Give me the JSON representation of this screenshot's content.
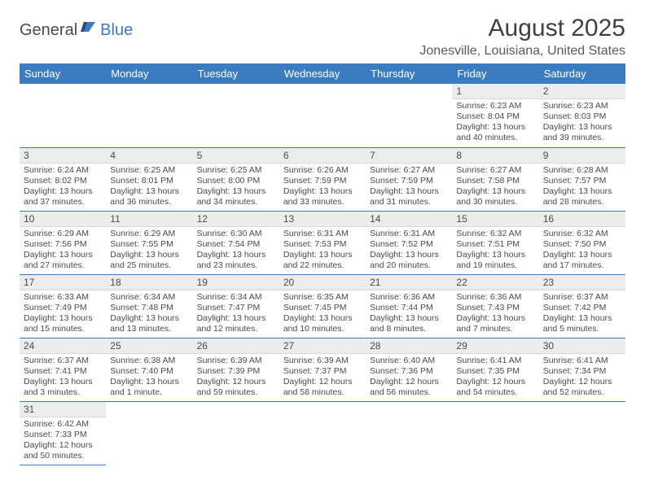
{
  "logo": {
    "general": "General",
    "blue": "Blue"
  },
  "title": "August 2025",
  "location": "Jonesville, Louisiana, United States",
  "headerColor": "#3b7bbf",
  "dayHeaders": [
    "Sunday",
    "Monday",
    "Tuesday",
    "Wednesday",
    "Thursday",
    "Friday",
    "Saturday"
  ],
  "weeks": [
    [
      null,
      null,
      null,
      null,
      null,
      {
        "n": "1",
        "sunrise": "Sunrise: 6:23 AM",
        "sunset": "Sunset: 8:04 PM",
        "daylight": "Daylight: 13 hours and 40 minutes."
      },
      {
        "n": "2",
        "sunrise": "Sunrise: 6:23 AM",
        "sunset": "Sunset: 8:03 PM",
        "daylight": "Daylight: 13 hours and 39 minutes."
      }
    ],
    [
      {
        "n": "3",
        "sunrise": "Sunrise: 6:24 AM",
        "sunset": "Sunset: 8:02 PM",
        "daylight": "Daylight: 13 hours and 37 minutes."
      },
      {
        "n": "4",
        "sunrise": "Sunrise: 6:25 AM",
        "sunset": "Sunset: 8:01 PM",
        "daylight": "Daylight: 13 hours and 36 minutes."
      },
      {
        "n": "5",
        "sunrise": "Sunrise: 6:25 AM",
        "sunset": "Sunset: 8:00 PM",
        "daylight": "Daylight: 13 hours and 34 minutes."
      },
      {
        "n": "6",
        "sunrise": "Sunrise: 6:26 AM",
        "sunset": "Sunset: 7:59 PM",
        "daylight": "Daylight: 13 hours and 33 minutes."
      },
      {
        "n": "7",
        "sunrise": "Sunrise: 6:27 AM",
        "sunset": "Sunset: 7:59 PM",
        "daylight": "Daylight: 13 hours and 31 minutes."
      },
      {
        "n": "8",
        "sunrise": "Sunrise: 6:27 AM",
        "sunset": "Sunset: 7:58 PM",
        "daylight": "Daylight: 13 hours and 30 minutes."
      },
      {
        "n": "9",
        "sunrise": "Sunrise: 6:28 AM",
        "sunset": "Sunset: 7:57 PM",
        "daylight": "Daylight: 13 hours and 28 minutes."
      }
    ],
    [
      {
        "n": "10",
        "sunrise": "Sunrise: 6:29 AM",
        "sunset": "Sunset: 7:56 PM",
        "daylight": "Daylight: 13 hours and 27 minutes."
      },
      {
        "n": "11",
        "sunrise": "Sunrise: 6:29 AM",
        "sunset": "Sunset: 7:55 PM",
        "daylight": "Daylight: 13 hours and 25 minutes."
      },
      {
        "n": "12",
        "sunrise": "Sunrise: 6:30 AM",
        "sunset": "Sunset: 7:54 PM",
        "daylight": "Daylight: 13 hours and 23 minutes."
      },
      {
        "n": "13",
        "sunrise": "Sunrise: 6:31 AM",
        "sunset": "Sunset: 7:53 PM",
        "daylight": "Daylight: 13 hours and 22 minutes."
      },
      {
        "n": "14",
        "sunrise": "Sunrise: 6:31 AM",
        "sunset": "Sunset: 7:52 PM",
        "daylight": "Daylight: 13 hours and 20 minutes."
      },
      {
        "n": "15",
        "sunrise": "Sunrise: 6:32 AM",
        "sunset": "Sunset: 7:51 PM",
        "daylight": "Daylight: 13 hours and 19 minutes."
      },
      {
        "n": "16",
        "sunrise": "Sunrise: 6:32 AM",
        "sunset": "Sunset: 7:50 PM",
        "daylight": "Daylight: 13 hours and 17 minutes."
      }
    ],
    [
      {
        "n": "17",
        "sunrise": "Sunrise: 6:33 AM",
        "sunset": "Sunset: 7:49 PM",
        "daylight": "Daylight: 13 hours and 15 minutes."
      },
      {
        "n": "18",
        "sunrise": "Sunrise: 6:34 AM",
        "sunset": "Sunset: 7:48 PM",
        "daylight": "Daylight: 13 hours and 13 minutes."
      },
      {
        "n": "19",
        "sunrise": "Sunrise: 6:34 AM",
        "sunset": "Sunset: 7:47 PM",
        "daylight": "Daylight: 13 hours and 12 minutes."
      },
      {
        "n": "20",
        "sunrise": "Sunrise: 6:35 AM",
        "sunset": "Sunset: 7:45 PM",
        "daylight": "Daylight: 13 hours and 10 minutes."
      },
      {
        "n": "21",
        "sunrise": "Sunrise: 6:36 AM",
        "sunset": "Sunset: 7:44 PM",
        "daylight": "Daylight: 13 hours and 8 minutes."
      },
      {
        "n": "22",
        "sunrise": "Sunrise: 6:36 AM",
        "sunset": "Sunset: 7:43 PM",
        "daylight": "Daylight: 13 hours and 7 minutes."
      },
      {
        "n": "23",
        "sunrise": "Sunrise: 6:37 AM",
        "sunset": "Sunset: 7:42 PM",
        "daylight": "Daylight: 13 hours and 5 minutes."
      }
    ],
    [
      {
        "n": "24",
        "sunrise": "Sunrise: 6:37 AM",
        "sunset": "Sunset: 7:41 PM",
        "daylight": "Daylight: 13 hours and 3 minutes."
      },
      {
        "n": "25",
        "sunrise": "Sunrise: 6:38 AM",
        "sunset": "Sunset: 7:40 PM",
        "daylight": "Daylight: 13 hours and 1 minute."
      },
      {
        "n": "26",
        "sunrise": "Sunrise: 6:39 AM",
        "sunset": "Sunset: 7:39 PM",
        "daylight": "Daylight: 12 hours and 59 minutes."
      },
      {
        "n": "27",
        "sunrise": "Sunrise: 6:39 AM",
        "sunset": "Sunset: 7:37 PM",
        "daylight": "Daylight: 12 hours and 58 minutes."
      },
      {
        "n": "28",
        "sunrise": "Sunrise: 6:40 AM",
        "sunset": "Sunset: 7:36 PM",
        "daylight": "Daylight: 12 hours and 56 minutes."
      },
      {
        "n": "29",
        "sunrise": "Sunrise: 6:41 AM",
        "sunset": "Sunset: 7:35 PM",
        "daylight": "Daylight: 12 hours and 54 minutes."
      },
      {
        "n": "30",
        "sunrise": "Sunrise: 6:41 AM",
        "sunset": "Sunset: 7:34 PM",
        "daylight": "Daylight: 12 hours and 52 minutes."
      }
    ],
    [
      {
        "n": "31",
        "sunrise": "Sunrise: 6:42 AM",
        "sunset": "Sunset: 7:33 PM",
        "daylight": "Daylight: 12 hours and 50 minutes."
      },
      null,
      null,
      null,
      null,
      null,
      null
    ]
  ]
}
